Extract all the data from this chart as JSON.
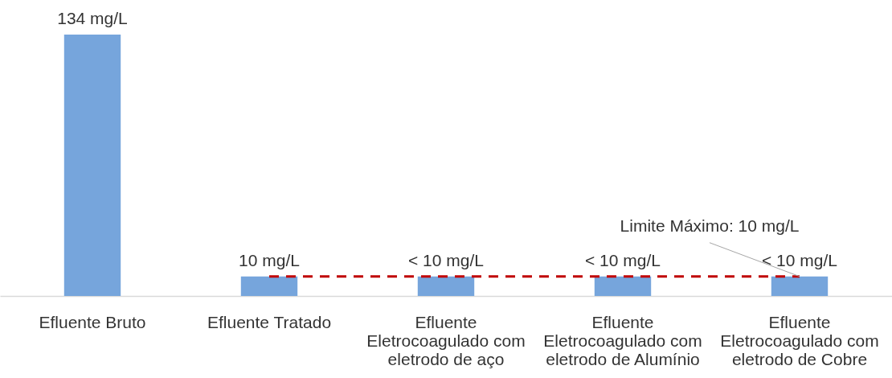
{
  "chart_data": {
    "type": "bar",
    "categories": [
      "Efluente Bruto",
      "Efluente Tratado",
      "Efluente\nEletrocoagulado com\neletrodo de aço",
      "Efluente\nEletrocoagulado com\neletrodo de Alumínio",
      "Efluente\nEletrocoagulado com\neletrodo de Cobre"
    ],
    "series": [
      {
        "color": "#76a5dc",
        "values": [
          134,
          10,
          10,
          10,
          10
        ],
        "value_labels": [
          "134 mg/L",
          "10 mg/L",
          "< 10 mg/L",
          "< 10 mg/L",
          "< 10 mg/L"
        ]
      },
      {
        "type": "line",
        "name": "Limite Máximo: 10 mg/L",
        "color": "#c00000",
        "line_style": "dashed",
        "values": [
          null,
          10,
          10,
          10,
          10
        ]
      }
    ]
  }
}
